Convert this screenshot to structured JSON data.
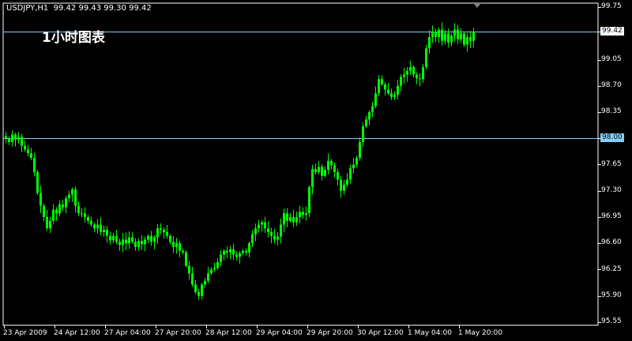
{
  "header": {
    "symbol": "USDJPY,H1",
    "ohlc": "99.42 99.43 99.30 99.42"
  },
  "title": "1小时图表",
  "colors": {
    "background": "#000000",
    "candle": "#00ff00",
    "grid_frame": "#ffffff",
    "hline": "#87cefa",
    "bid_label_bg": "#ffffff",
    "hline_label_bg": "#87cefa"
  },
  "price_axis": {
    "labels": [
      "99.75",
      "99.42",
      "99.05",
      "98.70",
      "98.35",
      "98.00",
      "97.65",
      "97.30",
      "96.95",
      "96.60",
      "96.25",
      "95.90",
      "95.55"
    ],
    "range": [
      95.55,
      99.75
    ]
  },
  "time_axis": {
    "labels": [
      "23 Apr 2009",
      "24 Apr 12:00",
      "27 Apr 04:00",
      "27 Apr 20:00",
      "28 Apr 12:00",
      "29 Apr 04:00",
      "29 Apr 20:00",
      "30 Apr 12:00",
      "1 May 04:00",
      "1 May 20:00"
    ],
    "bars_per_label": 16
  },
  "hlines": [
    {
      "price": 99.42,
      "label": "99.42"
    },
    {
      "price": 98.0,
      "label": "98.00"
    }
  ],
  "chart_data": {
    "type": "candlestick",
    "timeframe": "H1",
    "ylim": [
      95.55,
      99.75
    ],
    "closes": [
      98.0,
      97.95,
      98.05,
      97.98,
      98.02,
      97.9,
      97.85,
      97.8,
      97.74,
      97.55,
      97.27,
      97.1,
      96.95,
      96.8,
      96.9,
      97.05,
      97.0,
      97.12,
      97.08,
      97.2,
      97.25,
      97.32,
      97.1,
      97.0,
      97.0,
      96.95,
      96.9,
      96.85,
      96.8,
      96.85,
      96.75,
      96.78,
      96.7,
      96.64,
      96.7,
      96.62,
      96.58,
      96.65,
      96.6,
      96.68,
      96.62,
      96.55,
      96.63,
      96.59,
      96.65,
      96.7,
      96.62,
      96.68,
      96.8,
      96.78,
      96.75,
      96.7,
      96.62,
      96.55,
      96.6,
      96.5,
      96.48,
      96.3,
      96.2,
      96.05,
      95.95,
      95.9,
      96.05,
      96.1,
      96.2,
      96.25,
      96.27,
      96.35,
      96.45,
      96.5,
      96.48,
      96.52,
      96.45,
      96.42,
      96.47,
      96.5,
      96.48,
      96.6,
      96.72,
      96.8,
      96.85,
      96.88,
      96.8,
      96.75,
      96.7,
      96.65,
      96.69,
      96.85,
      97.0,
      96.9,
      96.95,
      96.88,
      96.95,
      97.02,
      96.98,
      97.0,
      97.35,
      97.59,
      97.55,
      97.62,
      97.5,
      97.58,
      97.7,
      97.64,
      97.55,
      97.45,
      97.3,
      97.38,
      97.45,
      97.6,
      97.65,
      97.74,
      97.95,
      98.16,
      98.25,
      98.35,
      98.43,
      98.6,
      98.79,
      98.72,
      98.65,
      98.6,
      98.55,
      98.58,
      98.7,
      98.82,
      98.85,
      98.9,
      98.95,
      98.85,
      98.8,
      98.79,
      98.95,
      99.2,
      99.35,
      99.42,
      99.35,
      99.45,
      99.3,
      99.4,
      99.28,
      99.37,
      99.45,
      99.32,
      99.4,
      99.25,
      99.35,
      99.3,
      99.42
    ]
  }
}
